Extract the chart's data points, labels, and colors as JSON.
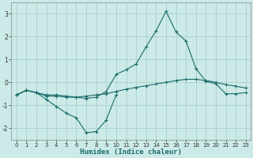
{
  "title": "",
  "xlabel": "Humidex (Indice chaleur)",
  "background_color": "#cceae7",
  "grid_color": "#aacfcc",
  "line_color": "#1a6b6b",
  "x": [
    0,
    1,
    2,
    3,
    4,
    5,
    6,
    7,
    8,
    9,
    10,
    11,
    12,
    13,
    14,
    15,
    16,
    17,
    18,
    19,
    20,
    21,
    22,
    23
  ],
  "series1": [
    -0.55,
    -0.35,
    -0.45,
    -0.55,
    -0.55,
    -0.6,
    -0.65,
    -0.6,
    -0.55,
    -0.5,
    -0.4,
    -0.3,
    -0.22,
    -0.15,
    -0.07,
    0.0,
    0.08,
    0.13,
    0.13,
    0.08,
    0.0,
    -0.1,
    -0.17,
    -0.25
  ],
  "series2": [
    -0.55,
    -0.35,
    -0.45,
    -0.75,
    -1.05,
    -1.35,
    -1.55,
    -2.2,
    -2.15,
    -1.65,
    -0.55,
    null,
    null,
    null,
    null,
    null,
    null,
    null,
    null,
    null,
    null,
    null,
    null,
    null
  ],
  "series3": [
    -0.55,
    -0.35,
    -0.45,
    -0.6,
    -0.6,
    -0.65,
    -0.65,
    -0.7,
    -0.65,
    -0.4,
    0.35,
    0.55,
    0.8,
    1.55,
    2.25,
    3.1,
    2.2,
    1.8,
    0.6,
    0.05,
    -0.07,
    -0.5,
    -0.5,
    -0.45
  ],
  "ylim": [
    -2.5,
    3.5
  ],
  "xlim": [
    -0.5,
    23.5
  ],
  "yticks": [
    -2,
    -1,
    0,
    1,
    2,
    3
  ],
  "xticks": [
    0,
    1,
    2,
    3,
    4,
    5,
    6,
    7,
    8,
    9,
    10,
    11,
    12,
    13,
    14,
    15,
    16,
    17,
    18,
    19,
    20,
    21,
    22,
    23
  ]
}
